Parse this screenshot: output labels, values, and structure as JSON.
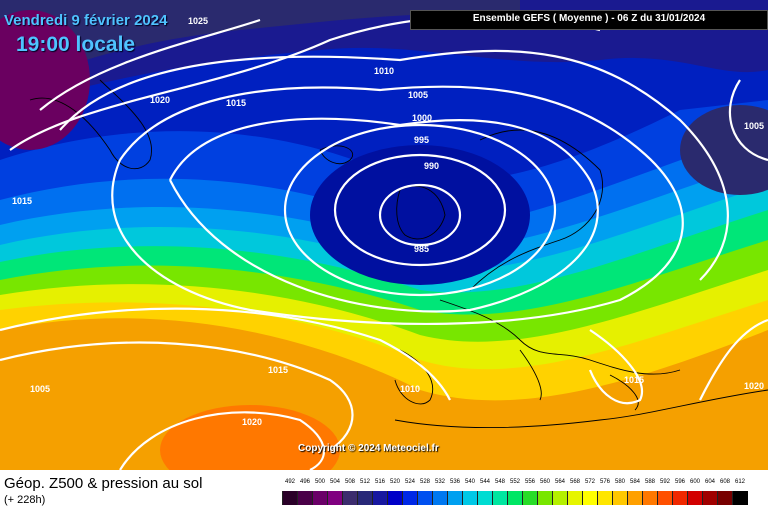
{
  "header": {
    "date": "Vendredi 9 février 2024",
    "time": "19:00 locale",
    "run": "Ensemble GEFS  ( Moyenne )  -  06 Z du 31/01/2024"
  },
  "copyright": "Copyright © 2024 Meteociel.fr",
  "footer": {
    "title": "Géop. Z500 & pression au sol",
    "subtitle": "(+ 228h)"
  },
  "legend": {
    "values": [
      "492",
      "496",
      "500",
      "504",
      "508",
      "512",
      "516",
      "520",
      "524",
      "528",
      "532",
      "536",
      "540",
      "544",
      "548",
      "552",
      "556",
      "560",
      "564",
      "568",
      "572",
      "576",
      "580",
      "584",
      "588",
      "592",
      "596",
      "600",
      "604",
      "608",
      "612"
    ],
    "colors": [
      "#2a0028",
      "#4a0048",
      "#6a0068",
      "#800080",
      "#3c2c6e",
      "#282878",
      "#1818a0",
      "#0000c8",
      "#0028e6",
      "#0050f0",
      "#0078f0",
      "#00a0f0",
      "#00c8e6",
      "#00dcd2",
      "#00e6a0",
      "#00e664",
      "#28dc28",
      "#78e600",
      "#b4f000",
      "#e6f500",
      "#ffff00",
      "#ffe600",
      "#ffc800",
      "#ffa000",
      "#ff7800",
      "#ff5000",
      "#f02800",
      "#d20000",
      "#a00000",
      "#780000",
      "#000000"
    ]
  },
  "isobars": [
    {
      "text": "1025"
    },
    {
      "text": "1020"
    },
    {
      "text": "1015"
    },
    {
      "text": "1010"
    },
    {
      "text": "1005"
    },
    {
      "text": "1000"
    },
    {
      "text": "995"
    },
    {
      "text": "990"
    },
    {
      "text": "985"
    },
    {
      "text": "1005"
    },
    {
      "text": "1015"
    },
    {
      "text": "1005"
    },
    {
      "text": "1015"
    },
    {
      "text": "1010"
    },
    {
      "text": "1020"
    },
    {
      "text": "1015"
    },
    {
      "text": "1020"
    }
  ]
}
